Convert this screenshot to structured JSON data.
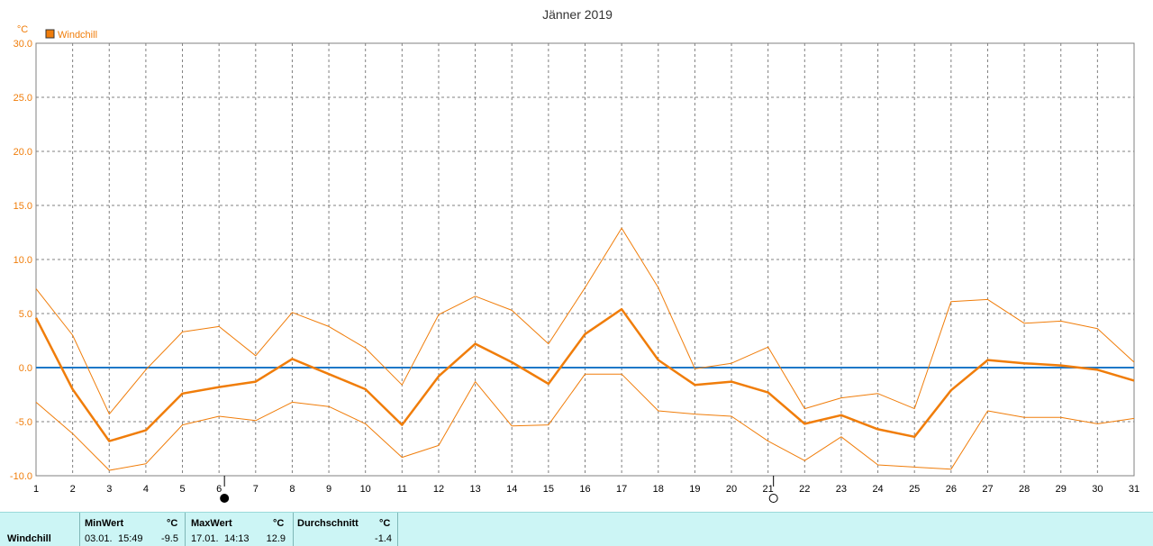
{
  "chart": {
    "title": "Jänner 2019",
    "y_unit": "°C",
    "legend_label": "Windchill",
    "colors": {
      "series": "#f07d0a",
      "zero_line": "#1e78c8",
      "grid": "#808080",
      "axis_text": "#f07d0a",
      "title_text": "#333333"
    }
  },
  "chart_data": {
    "type": "line",
    "title": "Jänner 2019",
    "ylabel": "°C",
    "xlabel": "",
    "ylim": [
      -10,
      30
    ],
    "yticks": [
      "30.0",
      "25.0",
      "20.0",
      "15.0",
      "10.0",
      "5.0",
      "0.0",
      "-5.0",
      "-10.0"
    ],
    "x": [
      1,
      2,
      3,
      4,
      5,
      6,
      7,
      8,
      9,
      10,
      11,
      12,
      13,
      14,
      15,
      16,
      17,
      18,
      19,
      20,
      21,
      22,
      23,
      24,
      25,
      26,
      27,
      28,
      29,
      30,
      31
    ],
    "grid": true,
    "legend_position": "top-left",
    "moon_phases": [
      {
        "day": 6,
        "phase": "new-moon"
      },
      {
        "day": 21,
        "phase": "full-moon"
      }
    ],
    "series": [
      {
        "name": "Windchill",
        "role": "mean",
        "values": [
          4.6,
          -2.0,
          -6.8,
          -5.8,
          -2.4,
          -1.8,
          -1.3,
          0.8,
          -0.6,
          -2.0,
          -5.3,
          -0.8,
          2.2,
          0.5,
          -1.5,
          3.1,
          5.4,
          0.7,
          -1.6,
          -1.3,
          -2.3,
          -5.2,
          -4.4,
          -5.7,
          -6.4,
          -2.1,
          0.7,
          0.4,
          0.2,
          -0.2,
          -1.2
        ]
      },
      {
        "role": "max",
        "values": [
          7.3,
          3.0,
          -4.3,
          -0.2,
          3.3,
          3.8,
          1.1,
          5.1,
          3.8,
          1.8,
          -1.6,
          4.9,
          6.6,
          5.3,
          2.2,
          7.4,
          12.9,
          7.4,
          -0.1,
          0.4,
          1.9,
          -3.8,
          -2.8,
          -2.4,
          -3.8,
          6.1,
          6.3,
          4.1,
          4.3,
          3.6,
          0.5
        ]
      },
      {
        "role": "min",
        "values": [
          -3.2,
          -6.1,
          -9.5,
          -8.9,
          -5.3,
          -4.5,
          -4.9,
          -3.2,
          -3.6,
          -5.2,
          -8.3,
          -7.2,
          -1.3,
          -5.4,
          -5.3,
          -0.6,
          -0.6,
          -4.0,
          -4.3,
          -4.5,
          -6.8,
          -8.6,
          -6.4,
          -9.0,
          -9.2,
          -9.4,
          -4.0,
          -4.6,
          -4.6,
          -5.2,
          -4.7
        ]
      }
    ]
  },
  "stats": {
    "row_label": "Windchill",
    "min": {
      "header": "MinWert",
      "unit": "°C",
      "date": "03.01.",
      "time": "15:49",
      "value": "-9.5"
    },
    "max": {
      "header": "MaxWert",
      "unit": "°C",
      "date": "17.01.",
      "time": "14:13",
      "value": "12.9"
    },
    "avg": {
      "header": "Durchschnitt",
      "unit": "°C",
      "value": "-1.4"
    }
  }
}
